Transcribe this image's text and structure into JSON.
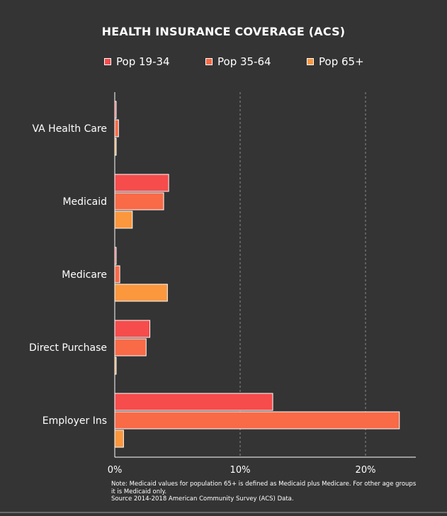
{
  "chart_data": {
    "type": "bar",
    "orientation": "horizontal",
    "title": "HEALTH INSURANCE COVERAGE (ACS)",
    "categories": [
      "VA Health Care",
      "Medicaid",
      "Medicare",
      "Direct Purchase",
      "Employer Ins"
    ],
    "series": [
      {
        "name": "Pop 19-34",
        "color": "#f64c4c",
        "values": [
          0.1,
          4.3,
          0.1,
          2.8,
          12.6
        ]
      },
      {
        "name": "Pop 35-64",
        "color": "#f96a47",
        "values": [
          0.3,
          3.9,
          0.4,
          2.5,
          22.7
        ]
      },
      {
        "name": "Pop 65+",
        "color": "#fb973d",
        "values": [
          0.1,
          1.4,
          4.2,
          0.1,
          0.7
        ]
      }
    ],
    "xlim": [
      0,
      24
    ],
    "xticks": [
      0,
      10,
      20
    ],
    "xtick_labels": [
      "0%",
      "10%",
      "20%"
    ],
    "grid": true,
    "legend_position": "top-center",
    "xlabel": "",
    "ylabel": ""
  },
  "note": {
    "line1": "Note: Medicaid values for population 65+ is defined as Medicaid plus Medicare. For other age groups",
    "line2": "it is Medicaid only.",
    "line3": "Source 2014-2018 American Community Survey (ACS) Data."
  }
}
